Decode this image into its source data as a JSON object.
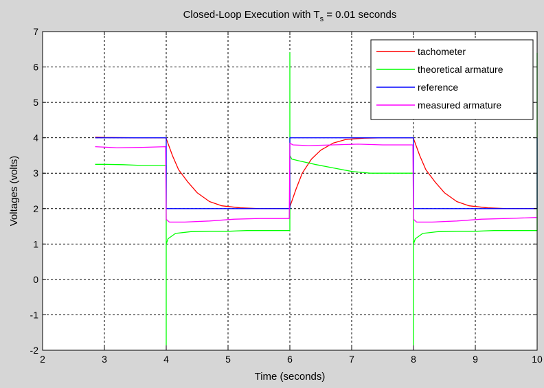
{
  "chart_data": {
    "type": "line",
    "title": "Closed-Loop Execution with T",
    "title_subscript": "s",
    "title_suffix": " = 0.01 seconds",
    "xlabel": "Time (seconds)",
    "ylabel": "Voltages (volts)",
    "xlim": [
      2,
      10
    ],
    "ylim": [
      -2,
      7
    ],
    "xticks": [
      2,
      3,
      4,
      5,
      6,
      7,
      8,
      9,
      10
    ],
    "yticks": [
      -2,
      -1,
      0,
      1,
      2,
      3,
      4,
      5,
      6,
      7
    ],
    "grid": true,
    "legend_position": "top-right",
    "series": [
      {
        "name": "tachometer",
        "color": "#ff0000",
        "x": [
          2.85,
          3.0,
          3.5,
          3.99,
          4.0,
          4.1,
          4.2,
          4.35,
          4.5,
          4.7,
          4.9,
          5.2,
          5.5,
          5.99,
          6.0,
          6.1,
          6.2,
          6.35,
          6.5,
          6.7,
          6.9,
          7.2,
          7.5,
          7.99,
          8.0,
          8.1,
          8.2,
          8.35,
          8.5,
          8.7,
          8.9,
          9.2,
          9.5,
          9.99
        ],
        "y": [
          4.02,
          4.01,
          4.0,
          4.0,
          3.98,
          3.5,
          3.1,
          2.75,
          2.45,
          2.2,
          2.08,
          2.02,
          2.0,
          2.0,
          2.05,
          2.55,
          3.0,
          3.4,
          3.65,
          3.85,
          3.95,
          3.99,
          4.0,
          4.0,
          3.98,
          3.5,
          3.1,
          2.75,
          2.45,
          2.2,
          2.08,
          2.02,
          2.0,
          2.0
        ]
      },
      {
        "name": "theoretical armature",
        "color": "#00ff00",
        "x": [
          2.85,
          3.0,
          3.3,
          3.6,
          3.99,
          4.0,
          4.0,
          4.0,
          4.03,
          4.15,
          4.4,
          4.7,
          5.0,
          5.3,
          5.6,
          5.99,
          6.0,
          6.0,
          6.0,
          6.03,
          6.15,
          6.4,
          6.7,
          7.0,
          7.3,
          7.6,
          7.99,
          8.0,
          8.0,
          8.0,
          8.03,
          8.15,
          8.4,
          8.7,
          9.0,
          9.3,
          9.6,
          9.99,
          10.0,
          10.0
        ],
        "y": [
          3.25,
          3.25,
          3.24,
          3.22,
          3.22,
          3.22,
          -1.85,
          1.0,
          1.15,
          1.3,
          1.35,
          1.36,
          1.36,
          1.38,
          1.38,
          1.38,
          1.38,
          6.4,
          3.5,
          3.4,
          3.35,
          3.25,
          3.15,
          3.05,
          3.0,
          3.0,
          3.0,
          3.0,
          -1.85,
          1.0,
          1.15,
          1.3,
          1.35,
          1.36,
          1.36,
          1.38,
          1.38,
          1.38,
          1.38,
          6.4
        ]
      },
      {
        "name": "reference",
        "color": "#0000ff",
        "x": [
          2.85,
          4.0,
          4.0,
          6.0,
          6.0,
          8.0,
          8.0,
          10.0,
          10.0
        ],
        "y": [
          4.0,
          4.0,
          2.0,
          2.0,
          4.0,
          4.0,
          2.0,
          2.0,
          4.0
        ]
      },
      {
        "name": "measured armature",
        "color": "#ff00ff",
        "x": [
          2.85,
          3.2,
          3.6,
          3.99,
          4.0,
          4.05,
          4.3,
          4.7,
          5.1,
          5.5,
          5.99,
          6.0,
          6.05,
          6.3,
          6.7,
          7.1,
          7.5,
          7.99,
          8.0,
          8.05,
          8.3,
          8.7,
          9.1,
          9.5,
          9.99
        ],
        "y": [
          3.75,
          3.72,
          3.73,
          3.75,
          1.7,
          1.62,
          1.62,
          1.65,
          1.7,
          1.72,
          1.72,
          3.85,
          3.8,
          3.78,
          3.8,
          3.82,
          3.8,
          3.8,
          1.7,
          1.62,
          1.62,
          1.65,
          1.7,
          1.72,
          1.75
        ]
      }
    ]
  }
}
